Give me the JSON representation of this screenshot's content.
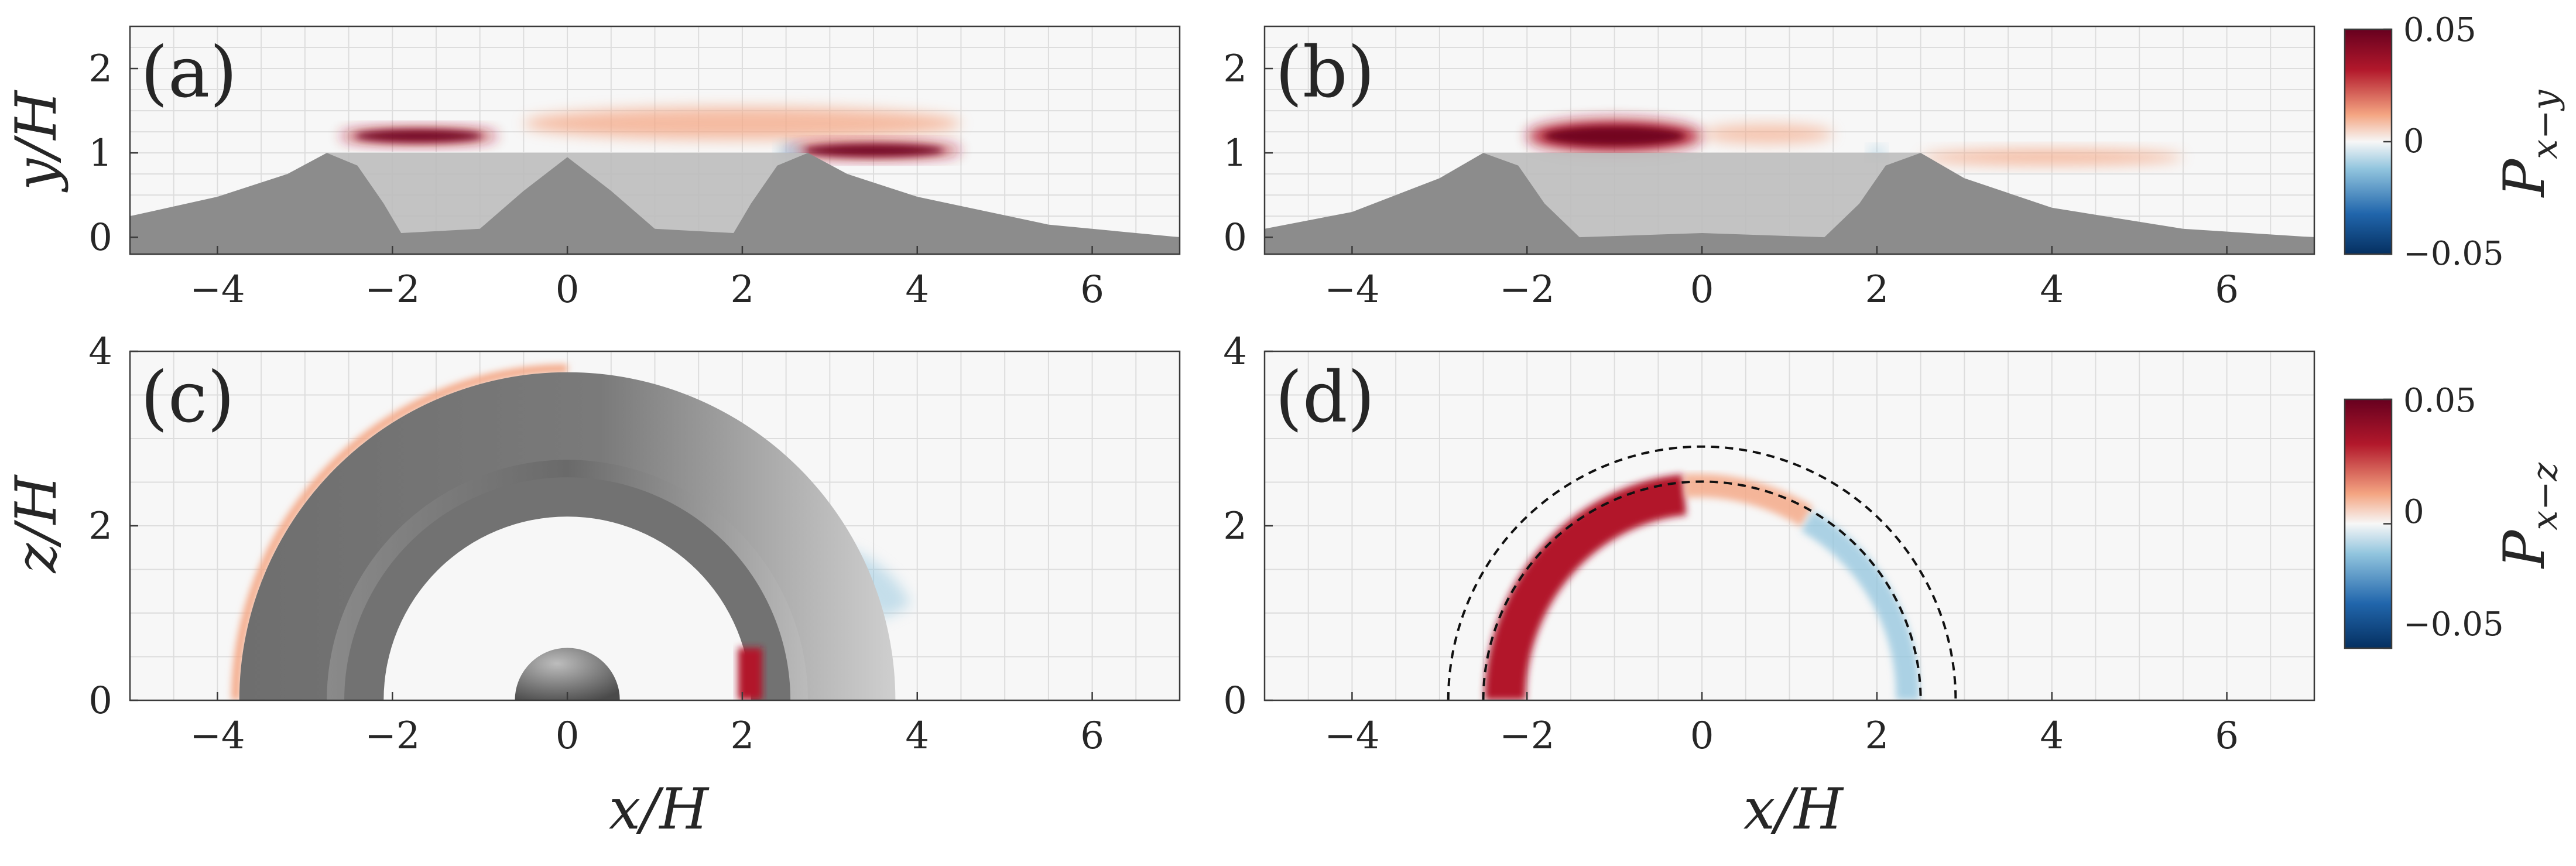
{
  "chart_data": [
    {
      "panel": "a",
      "type": "heatmap",
      "panel_label": "(a)",
      "xlabel": "",
      "ylabel": "y/H",
      "xlim": [
        -5,
        7
      ],
      "ylim": [
        -0.2,
        2.5
      ],
      "xticks": [
        -4,
        -2,
        0,
        2,
        4,
        6
      ],
      "xtick_labels": [
        "−4",
        "−2",
        "0",
        "2",
        "4",
        "6"
      ],
      "yticks": [
        0,
        1,
        2
      ],
      "ytick_labels": [
        "0",
        "1",
        "2"
      ],
      "grid": true,
      "colormap": "diverging red-blue",
      "clim": [
        -0.05,
        0.05
      ],
      "terrain_profile": [
        [
          -5,
          0.25
        ],
        [
          -4,
          0.48
        ],
        [
          -3.2,
          0.75
        ],
        [
          -2.75,
          1.0
        ],
        [
          -2.4,
          0.85
        ],
        [
          -2.1,
          0.4
        ],
        [
          -1.9,
          0.05
        ],
        [
          -1.0,
          0.1
        ],
        [
          -0.5,
          0.55
        ],
        [
          0,
          0.95
        ],
        [
          0.5,
          0.55
        ],
        [
          1.0,
          0.1
        ],
        [
          1.9,
          0.05
        ],
        [
          2.1,
          0.4
        ],
        [
          2.4,
          0.85
        ],
        [
          2.75,
          1.0
        ],
        [
          3.2,
          0.75
        ],
        [
          4,
          0.48
        ],
        [
          5.5,
          0.15
        ],
        [
          7,
          0.0
        ]
      ],
      "lid_extent": [
        -2.75,
        2.75
      ],
      "shear_layers": [
        {
          "x": [
            -2.6,
            -0.8
          ],
          "y": [
            1.15,
            1.25
          ],
          "sign": 1,
          "intensity": 0.9
        },
        {
          "x": [
            -0.5,
            4.5
          ],
          "y": [
            1.2,
            1.5
          ],
          "sign": 1,
          "intensity": 0.55
        },
        {
          "x": [
            2.5,
            4.5
          ],
          "y": [
            0.98,
            1.08
          ],
          "sign": 1,
          "intensity": 0.9
        },
        {
          "x": [
            2.4,
            2.7
          ],
          "y": [
            0.95,
            1.05
          ],
          "sign": -1,
          "intensity": 0.5
        }
      ]
    },
    {
      "panel": "b",
      "type": "heatmap",
      "panel_label": "(b)",
      "xlabel": "",
      "ylabel": "",
      "xlim": [
        -5,
        7
      ],
      "ylim": [
        -0.2,
        2.5
      ],
      "xticks": [
        -4,
        -2,
        0,
        2,
        4,
        6
      ],
      "xtick_labels": [
        "−4",
        "−2",
        "0",
        "2",
        "4",
        "6"
      ],
      "yticks": [
        0,
        1,
        2
      ],
      "ytick_labels": [
        "0",
        "1",
        "2"
      ],
      "grid": true,
      "colormap": "diverging red-blue",
      "clim": [
        -0.05,
        0.05
      ],
      "terrain_profile": [
        [
          -5,
          0.1
        ],
        [
          -4,
          0.3
        ],
        [
          -3.0,
          0.7
        ],
        [
          -2.5,
          1.0
        ],
        [
          -2.1,
          0.85
        ],
        [
          -1.8,
          0.4
        ],
        [
          -1.4,
          0.0
        ],
        [
          0,
          0.05
        ],
        [
          1.4,
          0.0
        ],
        [
          1.8,
          0.4
        ],
        [
          2.1,
          0.85
        ],
        [
          2.5,
          1.0
        ],
        [
          3.0,
          0.7
        ],
        [
          4,
          0.35
        ],
        [
          5.5,
          0.1
        ],
        [
          7,
          0.0
        ]
      ],
      "lid_extent": [
        -2.5,
        2.5
      ],
      "shear_layers": [
        {
          "x": [
            -2.0,
            0.0
          ],
          "y": [
            1.05,
            1.35
          ],
          "sign": 1,
          "intensity": 1.0
        },
        {
          "x": [
            0,
            1.5
          ],
          "y": [
            1.15,
            1.3
          ],
          "sign": 1,
          "intensity": 0.35
        },
        {
          "x": [
            2.5,
            5.5
          ],
          "y": [
            0.9,
            1.0
          ],
          "sign": 1,
          "intensity": 0.6
        },
        {
          "x": [
            1.9,
            2.1
          ],
          "y": [
            0.98,
            1.02
          ],
          "sign": -1,
          "intensity": 0.4
        }
      ]
    },
    {
      "panel": "c",
      "type": "heatmap",
      "panel_label": "(c)",
      "xlabel": "x/H",
      "ylabel": "z/H",
      "xlim": [
        -5,
        7
      ],
      "ylim": [
        0,
        4
      ],
      "xticks": [
        -4,
        -2,
        0,
        2,
        4,
        6
      ],
      "xtick_labels": [
        "−4",
        "−2",
        "0",
        "2",
        "4",
        "6"
      ],
      "yticks": [
        0,
        2,
        4
      ],
      "ytick_labels": [
        "0",
        "2",
        "4"
      ],
      "grid": true,
      "colormap": "diverging red-blue",
      "clim": [
        -0.05,
        0.05
      ],
      "crater_rings": {
        "outer_radius": 3.75,
        "rim_radius": 2.75,
        "inner_radius": 2.1,
        "center_peak_radius": 0.6
      }
    },
    {
      "panel": "d",
      "type": "heatmap",
      "panel_label": "(d)",
      "xlabel": "x/H",
      "ylabel": "",
      "xlim": [
        -5,
        7
      ],
      "ylim": [
        0,
        4
      ],
      "xticks": [
        -4,
        -2,
        0,
        2,
        4,
        6
      ],
      "xtick_labels": [
        "−4",
        "−2",
        "0",
        "2",
        "4",
        "6"
      ],
      "yticks": [
        0,
        2,
        4
      ],
      "ytick_labels": [
        "0",
        "2",
        "4"
      ],
      "grid": true,
      "colormap": "diverging red-blue",
      "clim": [
        -0.05,
        0.05
      ],
      "dashed_circles": [
        2.5,
        2.9
      ]
    }
  ],
  "colorbars": [
    {
      "label": "P_{x-y}",
      "label_main": "P",
      "label_sub": "x−y",
      "ticks": [
        "0.05",
        "0",
        "−0.05"
      ],
      "values": [
        0.05,
        0,
        -0.05
      ]
    },
    {
      "label": "P_{x-z}",
      "label_main": "P",
      "label_sub": "x−z",
      "ticks": [
        "0.05",
        "0",
        "−0.05"
      ],
      "values": [
        0.05,
        0,
        -0.05
      ]
    }
  ],
  "colors": {
    "positive_max": "#67001f",
    "positive": "#b2182b",
    "positive_light": "#f4a582",
    "neutral": "#f7f7f7",
    "negative_light": "#92c5de",
    "negative": "#2166ac",
    "negative_max": "#053061",
    "terrain": "#8c8c8c",
    "terrain_light": "#bdbdbd",
    "grid": "#dddddd"
  }
}
